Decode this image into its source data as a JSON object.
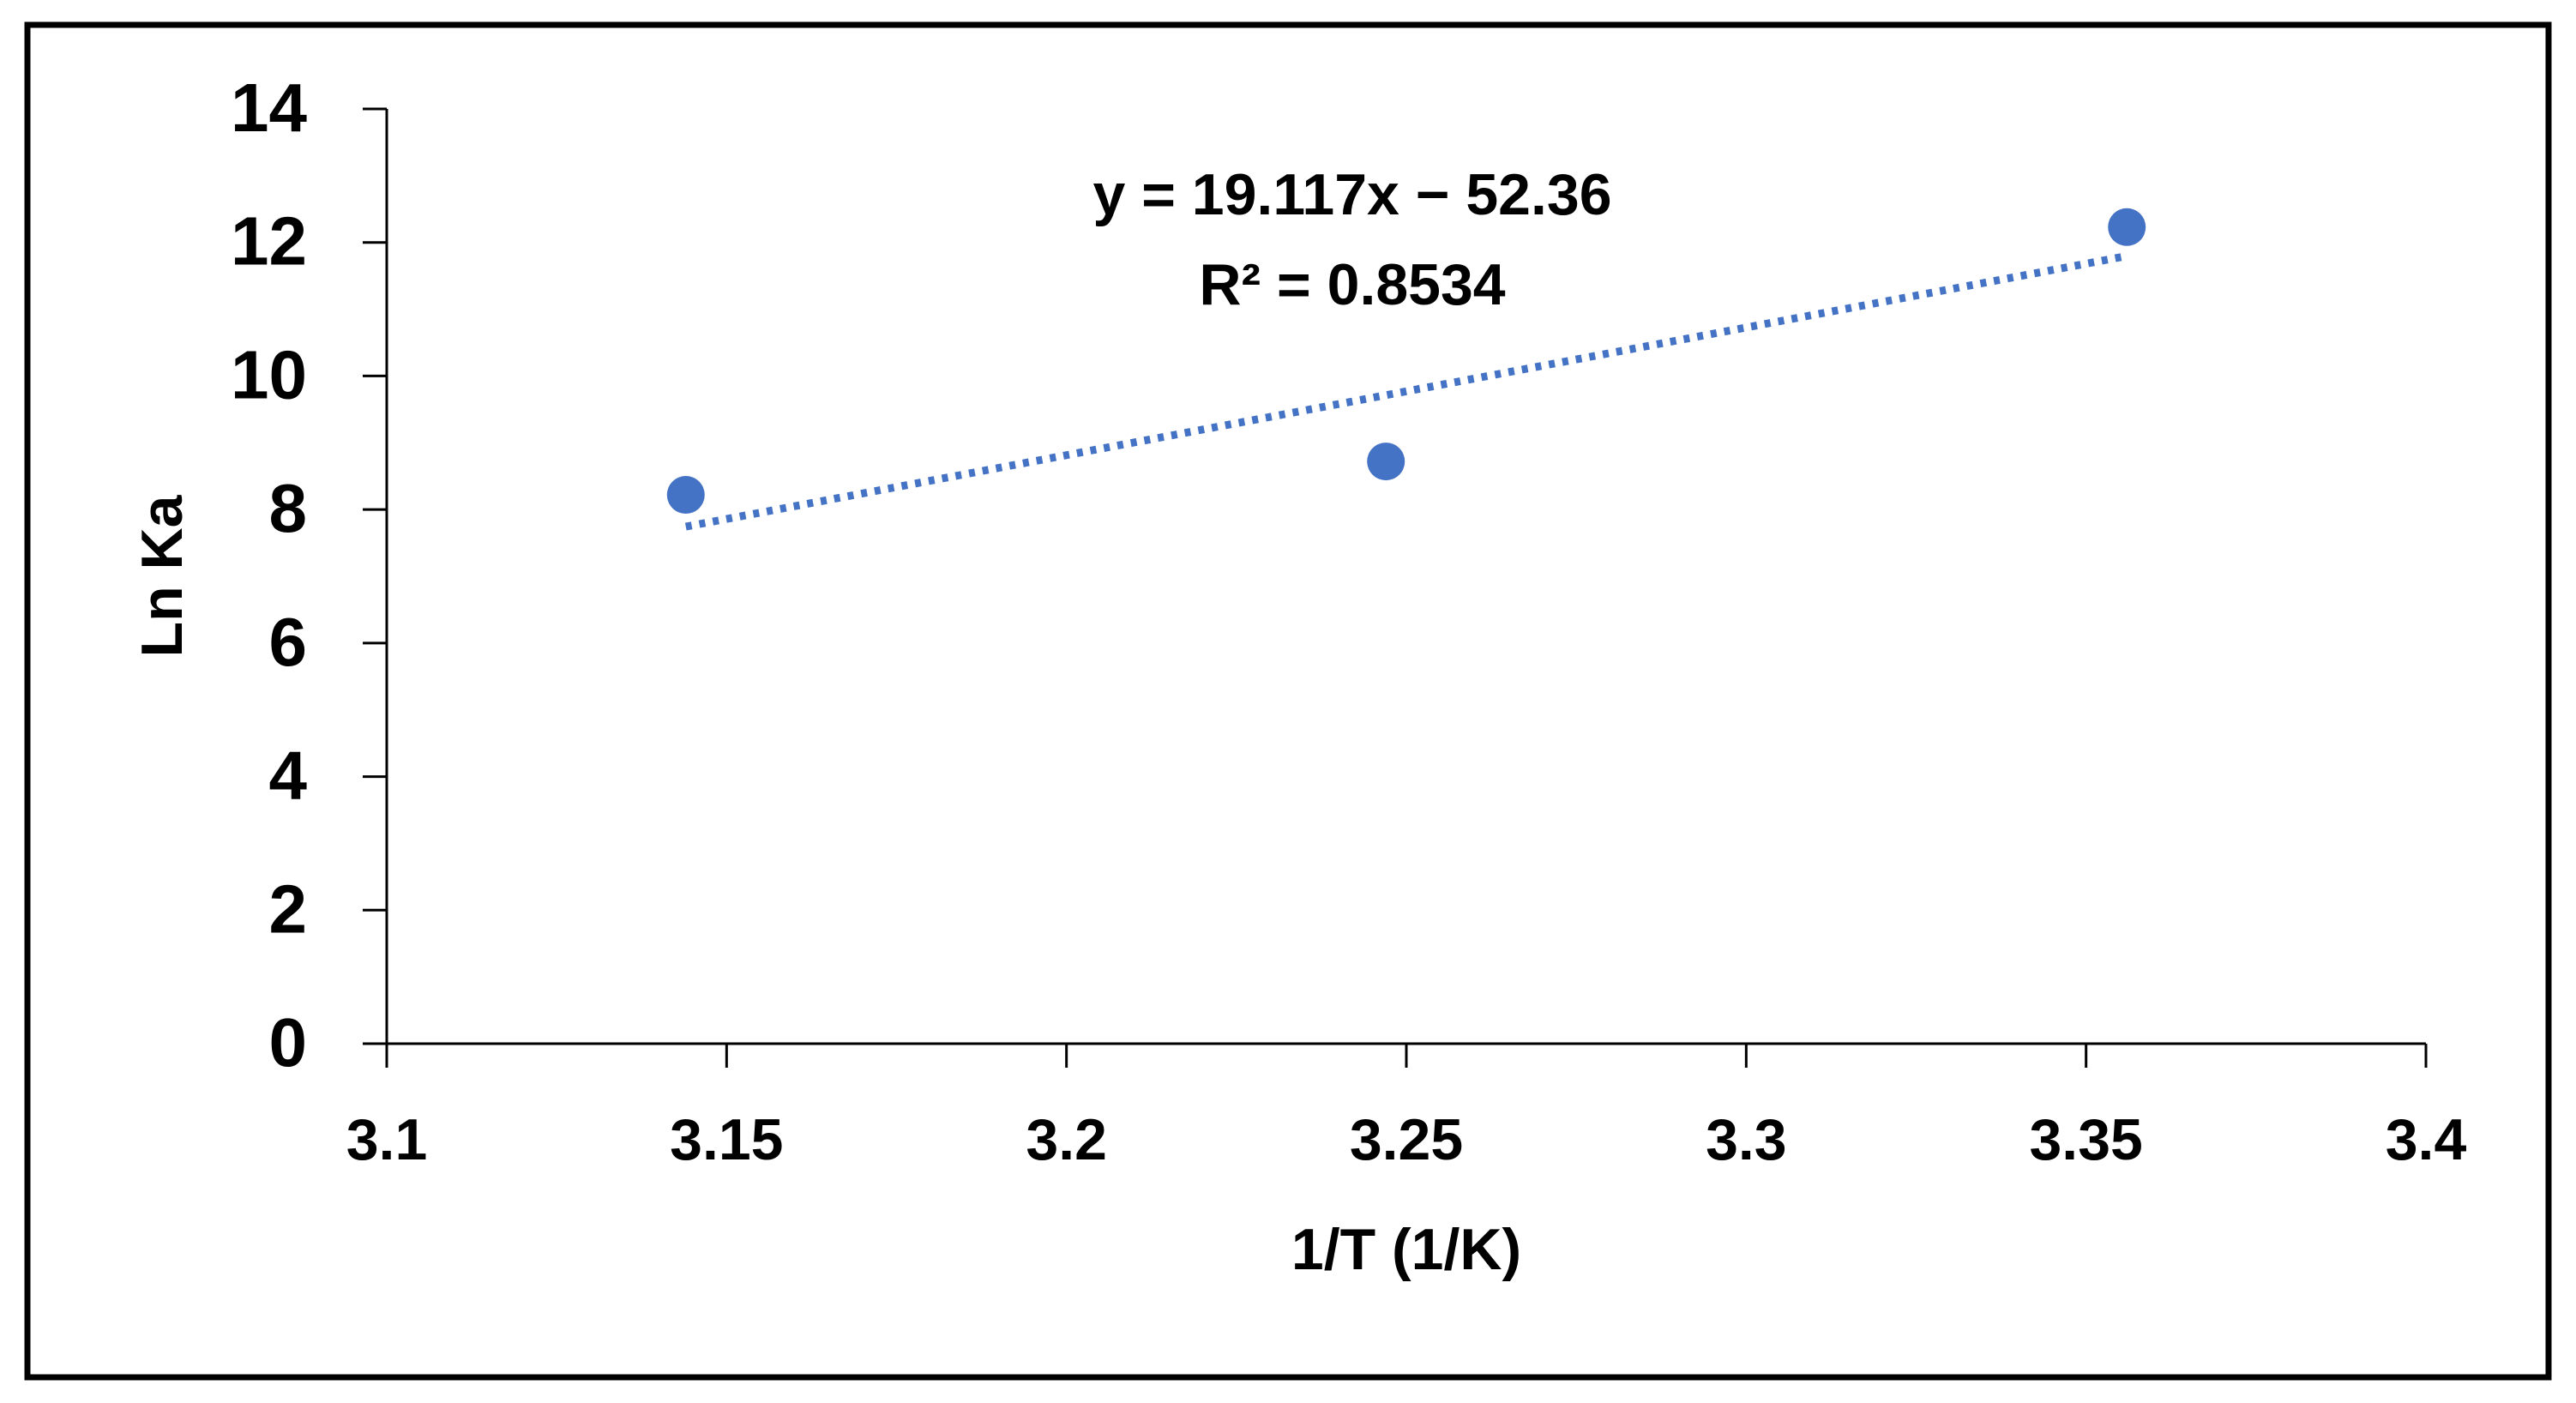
{
  "chart_data": {
    "type": "scatter",
    "title": "",
    "xlabel": "1/T (1/K)",
    "ylabel": "Ln Ka",
    "xlim": [
      3.1,
      3.4
    ],
    "ylim": [
      0,
      14
    ],
    "xticks": [
      3.1,
      3.15,
      3.2,
      3.25,
      3.3,
      3.35,
      3.4
    ],
    "xtick_labels": [
      "3.1",
      "3.15",
      "3.2",
      "3.25",
      "3.3",
      "3.35",
      "3.4"
    ],
    "yticks": [
      0,
      2,
      4,
      6,
      8,
      10,
      12,
      14
    ],
    "ytick_labels": [
      "0",
      "2",
      "4",
      "6",
      "8",
      "10",
      "12",
      "14"
    ],
    "grid": false,
    "legend": "none",
    "series": [
      {
        "color": "#4472C4",
        "points": [
          {
            "x": 3.144,
            "y": 8.22
          },
          {
            "x": 3.247,
            "y": 8.72
          },
          {
            "x": 3.356,
            "y": 12.23
          }
        ]
      }
    ],
    "trendline": {
      "type": "linear",
      "style": "dotted",
      "color": "#4472C4",
      "slope": 19.117,
      "intercept": -52.36,
      "x_range": [
        3.144,
        3.356
      ],
      "equation_label": "y = 19.117x − 52.36",
      "r2_label": "R² = 0.8534"
    },
    "colors": {
      "axis": "#000000",
      "frame": "#000000",
      "background": "#ffffff"
    }
  }
}
